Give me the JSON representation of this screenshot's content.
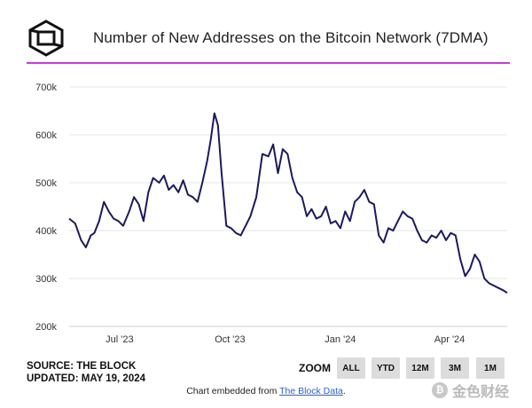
{
  "header": {
    "title": "Number of New Addresses on the Bitcoin Network (7DMA)",
    "accent_color": "#c63bd6"
  },
  "footer": {
    "source": "SOURCE: THE BLOCK",
    "updated": "UPDATED: MAY 19, 2024",
    "zoom_label": "ZOOM",
    "zoom_buttons": [
      "ALL",
      "YTD",
      "12M",
      "3M",
      "1M"
    ],
    "embed_prefix": "Chart embedded from ",
    "embed_link": "The Block Data",
    "embed_suffix": "."
  },
  "watermark": {
    "text": "金色财经",
    "icon": "bitcoin-coin-icon"
  },
  "chart_data": {
    "type": "line",
    "title": "Number of New Addresses on the Bitcoin Network (7DMA)",
    "xlabel": "",
    "ylabel": "",
    "x_ticks": [
      "Jul '23",
      "Oct '23",
      "Jan '24",
      "Apr '24"
    ],
    "y_ticks": [
      "200k",
      "300k",
      "400k",
      "500k",
      "600k",
      "700k"
    ],
    "ylim": [
      200000,
      700000
    ],
    "xlim": [
      "2023-05-20",
      "2024-05-19"
    ],
    "grid": true,
    "line_color": "#1c1a5c",
    "series": [
      {
        "x": [
          "2023-05-20",
          "2023-05-25",
          "2023-05-30",
          "2023-06-03",
          "2023-06-07",
          "2023-06-10",
          "2023-06-14",
          "2023-06-18",
          "2023-06-22",
          "2023-06-26",
          "2023-06-30",
          "2023-07-04",
          "2023-07-09",
          "2023-07-13",
          "2023-07-17",
          "2023-07-21",
          "2023-07-25",
          "2023-07-29",
          "2023-08-03",
          "2023-08-07",
          "2023-08-11",
          "2023-08-15",
          "2023-08-19",
          "2023-08-23",
          "2023-08-27",
          "2023-08-31",
          "2023-09-04",
          "2023-09-08",
          "2023-09-12",
          "2023-09-15",
          "2023-09-18",
          "2023-09-21",
          "2023-09-24",
          "2023-09-28",
          "2023-10-02",
          "2023-10-06",
          "2023-10-10",
          "2023-10-14",
          "2023-10-18",
          "2023-10-23",
          "2023-10-28",
          "2023-11-02",
          "2023-11-06",
          "2023-11-10",
          "2023-11-14",
          "2023-11-18",
          "2023-11-22",
          "2023-11-26",
          "2023-11-30",
          "2023-12-04",
          "2023-12-08",
          "2023-12-12",
          "2023-12-16",
          "2023-12-20",
          "2023-12-24",
          "2023-12-28",
          "2024-01-01",
          "2024-01-05",
          "2024-01-09",
          "2024-01-13",
          "2024-01-17",
          "2024-01-21",
          "2024-01-25",
          "2024-01-29",
          "2024-02-02",
          "2024-02-06",
          "2024-02-10",
          "2024-02-14",
          "2024-02-18",
          "2024-02-22",
          "2024-02-26",
          "2024-03-01",
          "2024-03-05",
          "2024-03-09",
          "2024-03-13",
          "2024-03-17",
          "2024-03-21",
          "2024-03-25",
          "2024-03-29",
          "2024-04-02",
          "2024-04-06",
          "2024-04-10",
          "2024-04-14",
          "2024-04-18",
          "2024-04-22",
          "2024-04-26",
          "2024-04-30",
          "2024-05-04",
          "2024-05-08",
          "2024-05-12",
          "2024-05-16",
          "2024-05-19"
        ],
        "values": [
          425000,
          415000,
          380000,
          365000,
          390000,
          395000,
          420000,
          460000,
          440000,
          425000,
          420000,
          410000,
          440000,
          470000,
          455000,
          420000,
          480000,
          510000,
          500000,
          515000,
          485000,
          495000,
          480000,
          505000,
          475000,
          470000,
          460000,
          500000,
          545000,
          590000,
          645000,
          620000,
          520000,
          410000,
          405000,
          395000,
          390000,
          410000,
          430000,
          470000,
          560000,
          555000,
          580000,
          520000,
          570000,
          560000,
          510000,
          480000,
          470000,
          430000,
          445000,
          425000,
          430000,
          450000,
          415000,
          420000,
          405000,
          440000,
          420000,
          460000,
          470000,
          485000,
          460000,
          455000,
          390000,
          375000,
          405000,
          400000,
          420000,
          440000,
          430000,
          425000,
          400000,
          380000,
          375000,
          390000,
          385000,
          400000,
          380000,
          395000,
          390000,
          340000,
          305000,
          320000,
          350000,
          335000,
          300000,
          290000,
          285000,
          280000,
          275000,
          270000
        ]
      }
    ]
  }
}
